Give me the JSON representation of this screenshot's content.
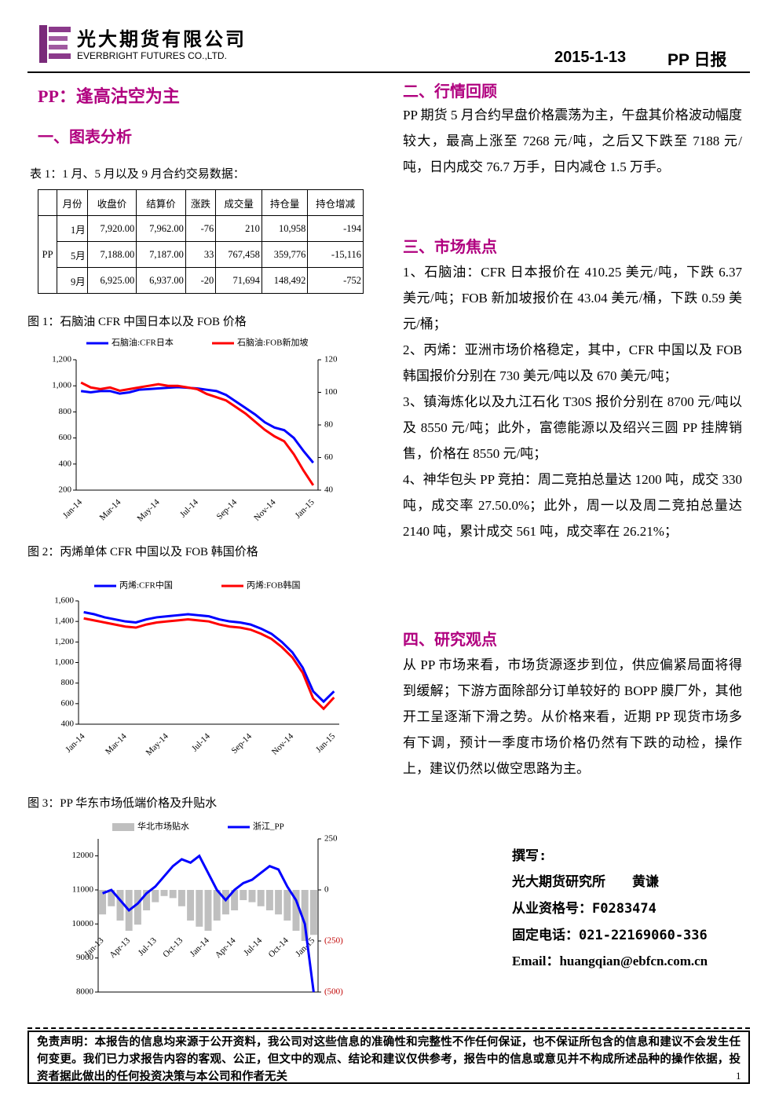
{
  "header": {
    "company": "光大期货有限公司",
    "company_en": "EVERBRIGHT FUTURES CO.,LTD.",
    "date": "2015-1-13",
    "report": "PP 日报"
  },
  "title": "PP：逢高沽空为主",
  "section1": "一、图表分析",
  "table": {
    "caption": "表 1：1 月、5 月以及 9 月合约交易数据：",
    "header": [
      "月份",
      "收盘价",
      "结算价",
      "涨跌",
      "成交量",
      "持仓量",
      "持仓增减"
    ],
    "product": "PP",
    "rows": [
      [
        "1月",
        "7,920.00",
        "7,962.00",
        "-76",
        "210",
        "10,958",
        "-194"
      ],
      [
        "5月",
        "7,188.00",
        "7,187.00",
        "33",
        "767,458",
        "359,776",
        "-15,116"
      ],
      [
        "9月",
        "6,925.00",
        "6,937.00",
        "-20",
        "71,694",
        "148,492",
        "-752"
      ]
    ]
  },
  "chart_data": [
    {
      "type": "line",
      "title": "图 1：石脑油 CFR 中国日本以及 FOB 价格",
      "categories": [
        "Jan-14",
        null,
        null,
        null,
        "Mar-14",
        null,
        null,
        null,
        "May-14",
        null,
        null,
        null,
        "Jul-14",
        null,
        null,
        null,
        "Sep-14",
        null,
        null,
        null,
        "Nov-14",
        null,
        null,
        null,
        "Jan-15"
      ],
      "series": [
        {
          "name": "石脑油:CFR日本",
          "color": "#0000ff",
          "values": [
            960,
            950,
            960,
            960,
            940,
            950,
            970,
            975,
            980,
            985,
            990,
            985,
            980,
            970,
            960,
            930,
            880,
            830,
            780,
            720,
            680,
            660,
            600,
            500,
            410
          ]
        },
        {
          "name": "石脑油:FOB新加坡",
          "color": "#ff0000",
          "axis": "y2",
          "values": [
            106,
            103,
            102,
            103,
            101,
            102,
            103,
            104,
            105,
            104,
            104,
            103,
            102,
            99,
            97,
            95,
            91,
            87,
            82,
            77,
            73,
            70,
            62,
            52,
            43
          ]
        }
      ],
      "ylim": [
        200,
        1200
      ],
      "yticks": [
        200,
        400,
        600,
        800,
        {
          "value": 1000,
          "label": "1,000"
        },
        {
          "value": 1200,
          "label": "1,200"
        }
      ],
      "y2lim": [
        40,
        120
      ],
      "y2ticks": [
        40,
        60,
        80,
        100,
        120
      ]
    },
    {
      "type": "line",
      "title": "图 2：丙烯单体 CFR 中国以及 FOB 韩国价格",
      "categories": [
        "Jan-14",
        null,
        null,
        null,
        "Mar-14",
        null,
        null,
        null,
        "May-14",
        null,
        null,
        null,
        "Jul-14",
        null,
        null,
        null,
        "Sep-14",
        null,
        null,
        null,
        "Nov-14",
        null,
        null,
        null,
        "Jan-15"
      ],
      "series": [
        {
          "name": "丙烯:CFR中国",
          "color": "#0000ff",
          "values": [
            1490,
            1470,
            1440,
            1420,
            1400,
            1390,
            1420,
            1440,
            1450,
            1460,
            1470,
            1460,
            1450,
            1420,
            1400,
            1390,
            1370,
            1330,
            1280,
            1200,
            1100,
            950,
            720,
            620,
            720
          ]
        },
        {
          "name": "丙烯:FOB韩国",
          "color": "#ff0000",
          "values": [
            1430,
            1410,
            1390,
            1370,
            1350,
            1340,
            1370,
            1390,
            1400,
            1410,
            1420,
            1410,
            1400,
            1370,
            1350,
            1340,
            1320,
            1280,
            1230,
            1150,
            1050,
            900,
            650,
            550,
            660
          ]
        }
      ],
      "ylim": [
        400,
        1600
      ],
      "yticks": [
        400,
        600,
        800,
        {
          "value": 1000,
          "label": "1,000"
        },
        {
          "value": 1200,
          "label": "1,200"
        },
        {
          "value": 1400,
          "label": "1,400"
        },
        {
          "value": 1600,
          "label": "1,600"
        }
      ]
    },
    {
      "type": "combo",
      "title": "图 3：PP 华东市场低端价格及升贴水",
      "categories": [
        "Jan-13",
        null,
        null,
        "Apr-13",
        null,
        null,
        "Jul-13",
        null,
        null,
        "Oct-13",
        null,
        null,
        "Jan-14",
        null,
        null,
        "Apr-14",
        null,
        null,
        "Jul-14",
        null,
        null,
        "Oct-14",
        null,
        null,
        "Jan-15"
      ],
      "series": [
        {
          "name": "华北市场贴水",
          "type": "bar",
          "color": "#bfbfbf",
          "axis": "y2",
          "values": [
            -120,
            -80,
            -150,
            -200,
            -170,
            -100,
            -60,
            -30,
            -40,
            -80,
            -150,
            -180,
            -200,
            -150,
            -120,
            -100,
            -50,
            -60,
            -80,
            -100,
            -120,
            -150,
            -200,
            -250,
            -220
          ]
        },
        {
          "name": "浙江_PP",
          "type": "line",
          "color": "#0000ff",
          "values": [
            10900,
            11000,
            10700,
            10400,
            10600,
            10900,
            11100,
            11400,
            11700,
            11900,
            11800,
            12000,
            11500,
            11000,
            10700,
            11000,
            11200,
            11300,
            11500,
            11700,
            11600,
            11100,
            10700,
            10000,
            8000
          ]
        }
      ],
      "ylim": [
        8000,
        12500
      ],
      "yticks": [
        8000,
        9000,
        10000,
        11000,
        12000
      ],
      "y2lim": [
        -500,
        250
      ],
      "y2ticks": [
        {
          "value": -500,
          "label": "(500)"
        },
        {
          "value": -250,
          "label": "(250)"
        },
        0,
        250
      ]
    }
  ],
  "section2": {
    "heading": "二、行情回顾",
    "text": "PP 期货 5 月合约早盘价格震荡为主，午盘其价格波动幅度较大，最高上涨至 7268 元/吨，之后又下跌至 7188 元/吨，日内成交 76.7 万手，日内减仓 1.5 万手。"
  },
  "section3": {
    "heading": "三、市场焦点",
    "items": [
      "1、石脑油：CFR 日本报价在 410.25 美元/吨，下跌 6.37 美元/吨；FOB 新加坡报价在 43.04 美元/桶，下跌 0.59 美元/桶；",
      "2、丙烯：亚洲市场价格稳定，其中，CFR 中国以及 FOB 韩国报价分别在 730 美元/吨以及 670 美元/吨；",
      "3、镇海炼化以及九江石化 T30S 报价分别在 8700 元/吨以及 8550 元/吨；此外，富德能源以及绍兴三圆 PP 挂牌销售，价格在 8550 元/吨；",
      "4、神华包头 PP 竞拍：周二竞拍总量达 1200 吨，成交 330 吨，成交率 27.50.0%；此外，周一以及周二竞拍总量达 2140 吨，累计成交 561 吨，成交率在 26.21%；"
    ]
  },
  "section4": {
    "heading": "四、研究观点",
    "text": "从 PP 市场来看，市场货源逐步到位，供应偏紧局面将得到缓解；下游方面除部分订单较好的 BOPP 膜厂外，其他开工呈逐渐下滑之势。从价格来看，近期 PP 现货市场多有下调，预计一季度市场价格仍然有下跌的动检，操作上，建议仍然以做空思路为主。"
  },
  "author": {
    "label": "撰写:",
    "name": "光大期货研究所　　黄谦",
    "license": "从业资格号：F0283474",
    "phone": "固定电话：021-22169060-336",
    "email": "Email：huangqian@ebfcn.com.cn"
  },
  "disclaimer": "免责声明：本报告的信息均来源于公开资料，我公司对这些信息的准确性和完整性不作任何保证，也不保证所包含的信息和建议不会发生任何变更。我们已力求报告内容的客观、公正，但文中的观点、结论和建议仅供参考，报告中的信息或意见并不构成所述品种的操作依据，投资者据此做出的任何投资决策与本公司和作者无关",
  "page": "1"
}
